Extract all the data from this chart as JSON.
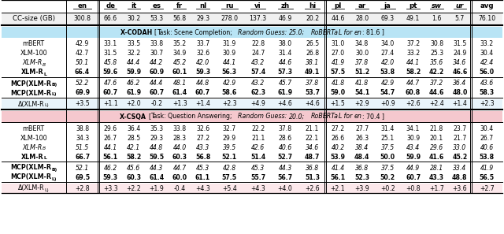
{
  "header": [
    "",
    "en",
    "de",
    "it",
    "es",
    "fr",
    "nl",
    "ru",
    "vi",
    "zh",
    "hi",
    "pl",
    "ar",
    "ja",
    "pt",
    "sw",
    "ur",
    "avg"
  ],
  "cc_size": [
    "CC-size (GB)",
    "300.8",
    "66.6",
    "30.2",
    "53.3",
    "56.8",
    "29.3",
    "278.0",
    "137.3",
    "46.9",
    "20.2",
    "44.6",
    "28.0",
    "69.3",
    "49.1",
    "1.6",
    "5.7",
    "76.10"
  ],
  "xcodah_rows": [
    [
      "mBERT",
      "42.9",
      "33.1",
      "33.5",
      "33.8",
      "35.2",
      "33.7",
      "31.9",
      "22.8",
      "38.0",
      "26.5",
      "31.0",
      "34.8",
      "34.0",
      "37.2",
      "30.8",
      "31.5",
      "33.2"
    ],
    [
      "XLM-100",
      "42.7",
      "31.5",
      "32.2",
      "30.7",
      "34.9",
      "32.6",
      "30.9",
      "24.7",
      "31.4",
      "26.8",
      "27.0",
      "30.0",
      "27.4",
      "33.2",
      "25.3",
      "24.9",
      "30.4"
    ],
    [
      "XLM-R-B",
      "50.1",
      "45.8",
      "44.4",
      "44.2",
      "45.2",
      "42.0",
      "44.1",
      "43.2",
      "44.6",
      "38.1",
      "41.9",
      "37.8",
      "42.0",
      "44.1",
      "35.6",
      "34.6",
      "42.4"
    ],
    [
      "XLM-R-L",
      "66.4",
      "59.6",
      "59.9",
      "60.9",
      "60.1",
      "59.3",
      "56.3",
      "57.4",
      "57.3",
      "49.1",
      "57.5",
      "51.2",
      "53.8",
      "58.2",
      "42.2",
      "46.6",
      "56.0"
    ]
  ],
  "xcodah_mcp": [
    [
      "MCP(XLM-R-B)",
      "52.2",
      "47.6",
      "46.2",
      "44.4",
      "48.1",
      "44.8",
      "42.9",
      "43.2",
      "45.7",
      "37.8",
      "41.8",
      "41.8",
      "42.9",
      "44.7",
      "37.2",
      "36.4",
      "43.6"
    ],
    [
      "MCP(XLM-R-L)",
      "69.9",
      "60.7",
      "61.9",
      "60.7",
      "61.4",
      "60.7",
      "58.6",
      "62.3",
      "61.9",
      "53.7",
      "59.0",
      "54.1",
      "54.7",
      "60.8",
      "44.6",
      "48.0",
      "58.3"
    ]
  ],
  "xcodah_delta": [
    "Δ(XLM-R-L)",
    "+3.5",
    "+1.1",
    "+2.0",
    "-0.2",
    "+1.3",
    "+1.4",
    "+2.3",
    "+4.9",
    "+4.6",
    "+4.6",
    "+1.5",
    "+2.9",
    "+0.9",
    "+2.6",
    "+2.4",
    "+1.4",
    "+2.3"
  ],
  "xcsqa_rows": [
    [
      "mBERT",
      "38.8",
      "29.6",
      "36.4",
      "35.3",
      "33.8",
      "32.6",
      "32.7",
      "22.2",
      "37.8",
      "21.1",
      "27.2",
      "27.7",
      "31.4",
      "34.1",
      "21.8",
      "23.7",
      "30.4"
    ],
    [
      "XLM-100",
      "34.3",
      "26.7",
      "28.5",
      "29.3",
      "28.3",
      "27.2",
      "29.9",
      "21.1",
      "28.6",
      "22.1",
      "26.6",
      "26.3",
      "25.1",
      "30.9",
      "20.1",
      "21.7",
      "26.7"
    ],
    [
      "XLM-R-B",
      "51.5",
      "44.1",
      "42.1",
      "44.8",
      "44.0",
      "43.3",
      "39.5",
      "42.6",
      "40.6",
      "34.6",
      "40.2",
      "38.4",
      "37.5",
      "43.4",
      "29.6",
      "33.0",
      "40.6"
    ],
    [
      "XLM-R-L",
      "66.7",
      "56.1",
      "58.2",
      "59.5",
      "60.3",
      "56.8",
      "52.1",
      "51.4",
      "52.7",
      "48.7",
      "53.9",
      "48.4",
      "50.0",
      "59.9",
      "41.6",
      "45.2",
      "53.8"
    ]
  ],
  "xcsqa_mcp": [
    [
      "MCP(XLM-R-B)",
      "52.1",
      "46.2",
      "45.6",
      "44.3",
      "44.7",
      "45.3",
      "42.8",
      "45.3",
      "44.3",
      "36.8",
      "41.4",
      "36.8",
      "37.5",
      "44.9",
      "28.1",
      "33.4",
      "41.9"
    ],
    [
      "MCP(XLM-R-L)",
      "69.5",
      "59.3",
      "60.3",
      "61.4",
      "60.0",
      "61.1",
      "57.5",
      "55.7",
      "56.7",
      "51.3",
      "56.1",
      "52.3",
      "50.2",
      "60.7",
      "43.3",
      "48.8",
      "56.5"
    ]
  ],
  "xcsqa_delta": [
    "Δ(XLM-R-L)",
    "+2.8",
    "+3.3",
    "+2.2",
    "+1.9",
    "-0.4",
    "+4.3",
    "+5.4",
    "+4.3",
    "+4.0",
    "+2.6",
    "+2.1",
    "+3.9",
    "+0.2",
    "+0.8",
    "+1.7",
    "+3.6",
    "+2.7"
  ],
  "bg_blue": "#b8e4f5",
  "bg_pink": "#f5c8ce",
  "bg_delta_blue": "#e8f4fb",
  "bg_delta_pink": "#fce8eb",
  "bg_header": "#f0f0f0",
  "italic_langs": [
    "sw",
    "ur"
  ],
  "col_widths_rel": [
    3.2,
    1.65,
    1.15,
    1.15,
    1.15,
    1.15,
    1.15,
    1.5,
    1.35,
    1.35,
    1.35,
    1.2,
    1.2,
    1.35,
    1.2,
    1.15,
    1.15,
    1.55
  ]
}
